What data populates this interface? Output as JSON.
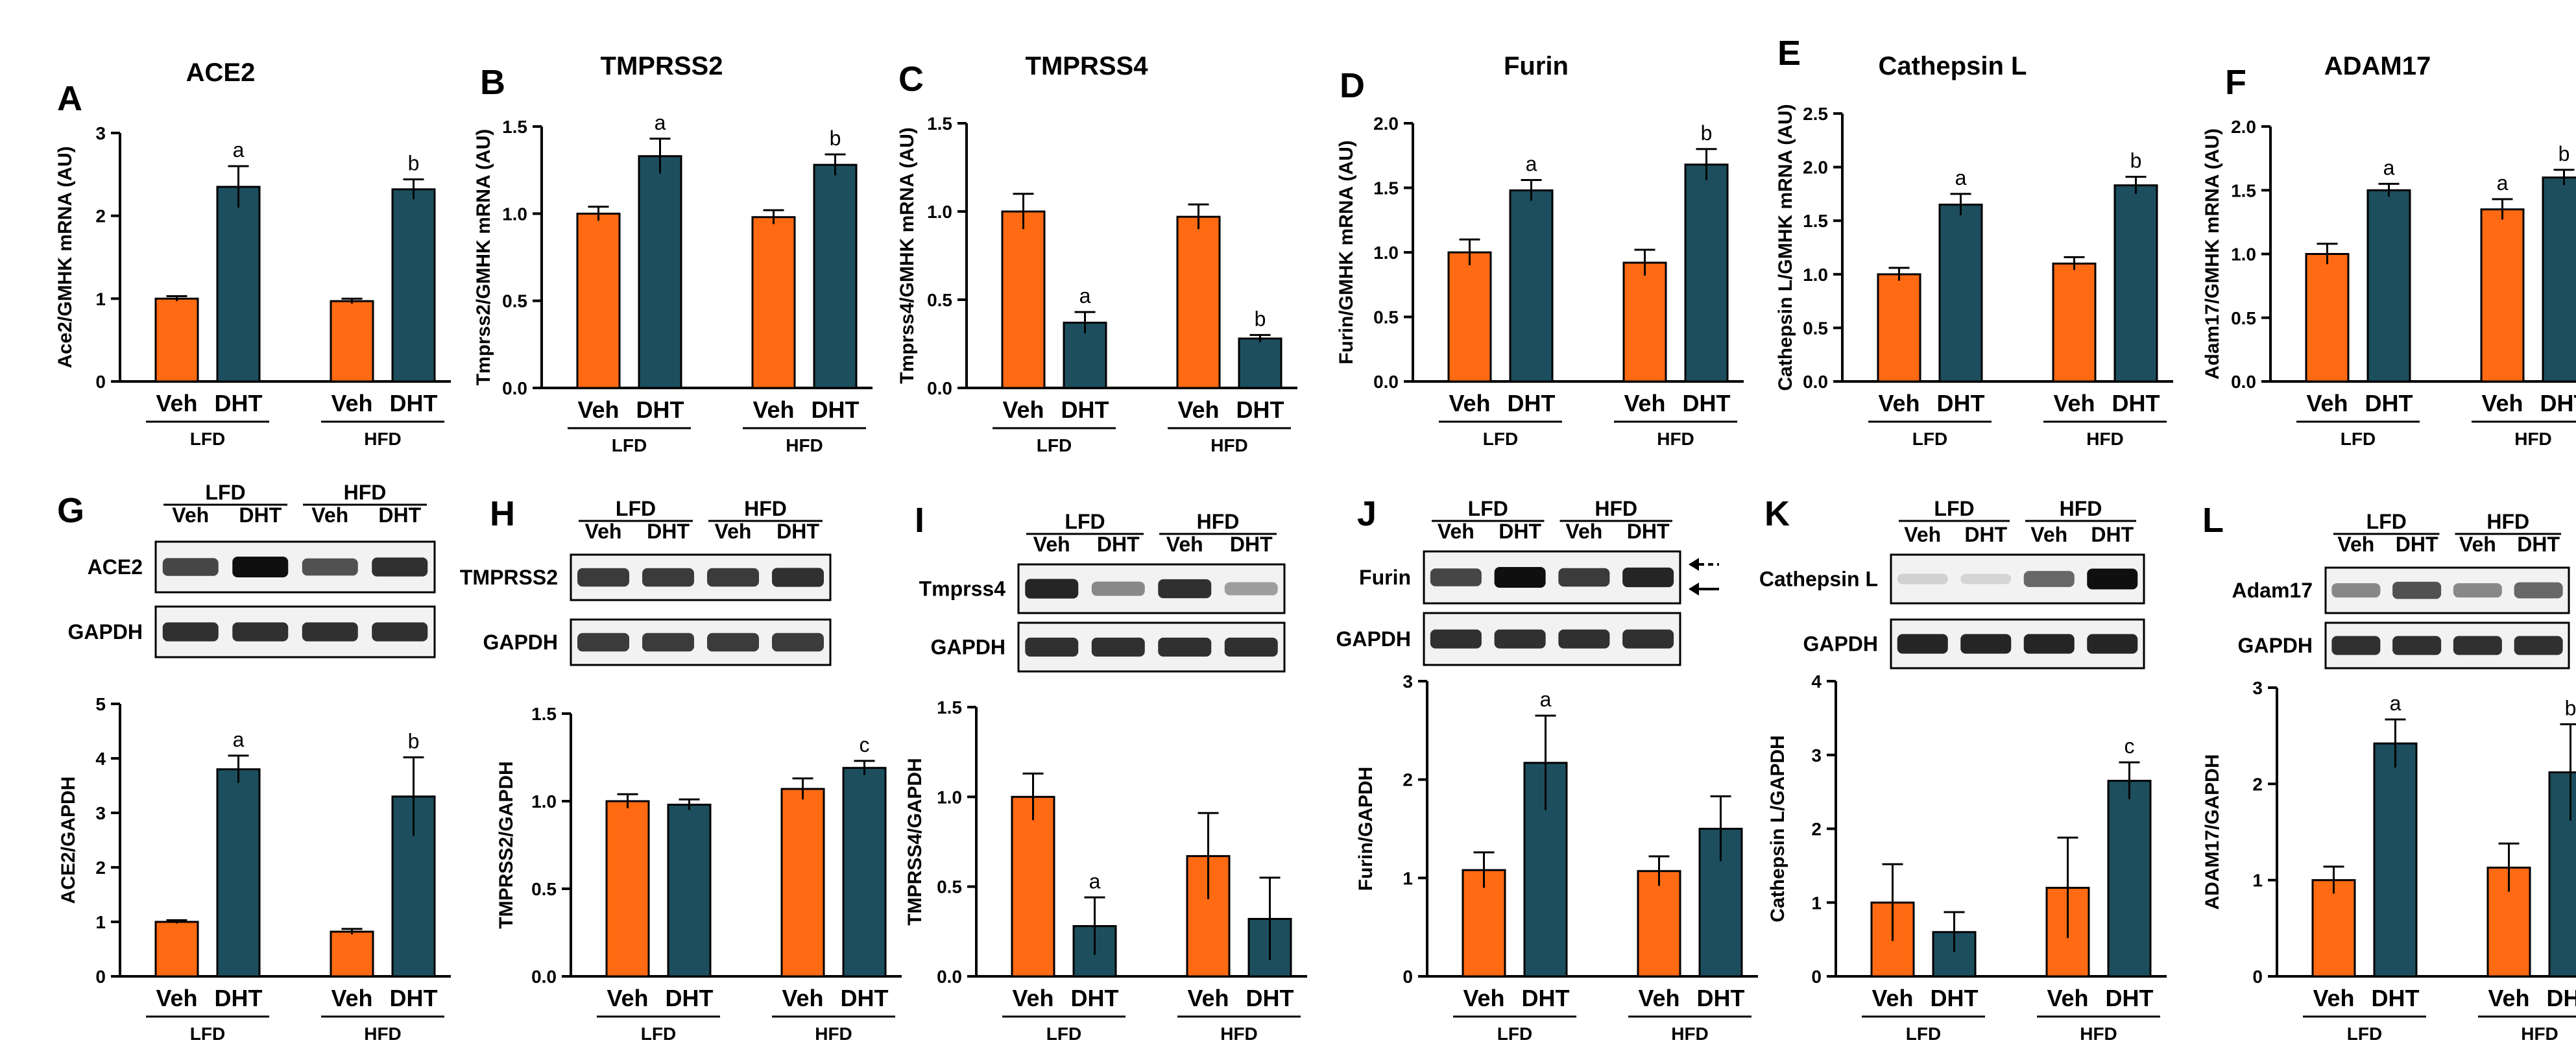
{
  "colors": {
    "veh": "#ff6a13",
    "dht": "#1c4e5e",
    "axis": "#000000"
  },
  "chart_data": [
    {
      "id": "A",
      "letter": "A",
      "type": "bar",
      "title": "ACE2",
      "ylabel": "Ace2/GMHK mRNA (AU)",
      "ylim": [
        0,
        3
      ],
      "yticks": [
        "0",
        "1",
        "2",
        "3"
      ],
      "groups": [
        "LFD",
        "HFD"
      ],
      "categories": [
        "Veh",
        "DHT",
        "Veh",
        "DHT"
      ],
      "values": [
        1.0,
        2.35,
        0.97,
        2.32
      ],
      "errors": [
        0.03,
        0.25,
        0.03,
        0.12
      ],
      "sig": [
        "",
        "a",
        "",
        "b"
      ]
    },
    {
      "id": "B",
      "letter": "B",
      "type": "bar",
      "title": "TMPRSS2",
      "ylabel": "Tmprss2/GMHK mRNA (AU)",
      "ylim": [
        0,
        1.5
      ],
      "yticks": [
        "0.0",
        "0.5",
        "1.0",
        "1.5"
      ],
      "groups": [
        "LFD",
        "HFD"
      ],
      "categories": [
        "Veh",
        "DHT",
        "Veh",
        "DHT"
      ],
      "values": [
        1.0,
        1.33,
        0.98,
        1.28
      ],
      "errors": [
        0.04,
        0.1,
        0.04,
        0.06
      ],
      "sig": [
        "",
        "a",
        "",
        "b"
      ]
    },
    {
      "id": "C",
      "letter": "C",
      "type": "bar",
      "title": "TMPRSS4",
      "ylabel": "Tmprss4/GMHK mRNA (AU)",
      "ylim": [
        0,
        1.5
      ],
      "yticks": [
        "0.0",
        "0.5",
        "1.0",
        "1.5"
      ],
      "groups": [
        "LFD",
        "HFD"
      ],
      "categories": [
        "Veh",
        "DHT",
        "Veh",
        "DHT"
      ],
      "values": [
        1.0,
        0.37,
        0.97,
        0.28
      ],
      "errors": [
        0.1,
        0.06,
        0.07,
        0.02
      ],
      "sig": [
        "",
        "a",
        "",
        "b"
      ]
    },
    {
      "id": "D",
      "letter": "D",
      "type": "bar",
      "title": "Furin",
      "ylabel": "Furin/GMHK mRNA (AU)",
      "ylim": [
        0,
        2.0
      ],
      "yticks": [
        "0.0",
        "0.5",
        "1.0",
        "1.5",
        "2.0"
      ],
      "groups": [
        "LFD",
        "HFD"
      ],
      "categories": [
        "Veh",
        "DHT",
        "Veh",
        "DHT"
      ],
      "values": [
        1.0,
        1.48,
        0.92,
        1.68
      ],
      "errors": [
        0.1,
        0.08,
        0.1,
        0.12
      ],
      "sig": [
        "",
        "a",
        "",
        "b"
      ]
    },
    {
      "id": "E",
      "letter": "E",
      "type": "bar",
      "title": "Cathepsin L",
      "ylabel": "Cathepsin L/GMHK mRNA (AU)",
      "ylim": [
        0,
        2.5
      ],
      "yticks": [
        "0.0",
        "0.5",
        "1.0",
        "1.5",
        "2.0",
        "2.5"
      ],
      "groups": [
        "LFD",
        "HFD"
      ],
      "categories": [
        "Veh",
        "DHT",
        "Veh",
        "DHT"
      ],
      "values": [
        1.0,
        1.65,
        1.1,
        1.83
      ],
      "errors": [
        0.06,
        0.1,
        0.06,
        0.08
      ],
      "sig": [
        "",
        "a",
        "",
        "b"
      ]
    },
    {
      "id": "F",
      "letter": "F",
      "type": "bar",
      "title": "ADAM17",
      "ylabel": "Adam17/GMHK mRNA (AU)",
      "ylim": [
        0,
        2.0
      ],
      "yticks": [
        "0.0",
        "0.5",
        "1.0",
        "1.5",
        "2.0"
      ],
      "groups": [
        "LFD",
        "HFD"
      ],
      "categories": [
        "Veh",
        "DHT",
        "Veh",
        "DHT"
      ],
      "values": [
        1.0,
        1.5,
        1.35,
        1.6
      ],
      "errors": [
        0.08,
        0.05,
        0.08,
        0.06
      ],
      "sig": [
        "",
        "a",
        "a",
        "b"
      ]
    },
    {
      "id": "G",
      "letter": "G",
      "type": "bar",
      "title": "",
      "ylabel": "ACE2/GAPDH",
      "ylim": [
        0,
        5
      ],
      "yticks": [
        "0",
        "1",
        "2",
        "3",
        "4",
        "5"
      ],
      "groups": [
        "LFD",
        "HFD"
      ],
      "categories": [
        "Veh",
        "DHT",
        "Veh",
        "DHT"
      ],
      "values": [
        1.0,
        3.8,
        0.82,
        3.3
      ],
      "errors": [
        0.03,
        0.25,
        0.05,
        0.72
      ],
      "sig": [
        "",
        "a",
        "",
        "b"
      ]
    },
    {
      "id": "H",
      "letter": "H",
      "type": "bar",
      "title": "",
      "ylabel": "TMPRSS2/GAPDH",
      "ylim": [
        0,
        1.5
      ],
      "yticks": [
        "0.0",
        "0.5",
        "1.0",
        "1.5"
      ],
      "groups": [
        "LFD",
        "HFD"
      ],
      "categories": [
        "Veh",
        "DHT",
        "Veh",
        "DHT"
      ],
      "values": [
        1.0,
        0.98,
        1.07,
        1.19
      ],
      "errors": [
        0.04,
        0.03,
        0.06,
        0.04
      ],
      "sig": [
        "",
        "",
        "",
        "c"
      ]
    },
    {
      "id": "I",
      "letter": "I",
      "type": "bar",
      "title": "",
      "ylabel": "TMPRSS4/GAPDH",
      "ylim": [
        0,
        1.5
      ],
      "yticks": [
        "0.0",
        "0.5",
        "1.0",
        "1.5"
      ],
      "groups": [
        "LFD",
        "HFD"
      ],
      "categories": [
        "Veh",
        "DHT",
        "Veh",
        "DHT"
      ],
      "values": [
        1.0,
        0.28,
        0.67,
        0.32
      ],
      "errors": [
        0.13,
        0.16,
        0.24,
        0.23
      ],
      "sig": [
        "",
        "a",
        "",
        ""
      ]
    },
    {
      "id": "J",
      "letter": "J",
      "type": "bar",
      "title": "",
      "ylabel": "Furin/GAPDH",
      "ylim": [
        0,
        3
      ],
      "yticks": [
        "0",
        "1",
        "2",
        "3"
      ],
      "groups": [
        "LFD",
        "HFD"
      ],
      "categories": [
        "Veh",
        "DHT",
        "Veh",
        "DHT"
      ],
      "values": [
        1.08,
        2.17,
        1.07,
        1.5
      ],
      "errors": [
        0.18,
        0.48,
        0.15,
        0.33
      ],
      "sig": [
        "",
        "a",
        "",
        ""
      ]
    },
    {
      "id": "K",
      "letter": "K",
      "type": "bar",
      "title": "",
      "ylabel": "Cathepsin L/GAPDH",
      "ylim": [
        0,
        4
      ],
      "yticks": [
        "0",
        "1",
        "2",
        "3",
        "4"
      ],
      "groups": [
        "LFD",
        "HFD"
      ],
      "categories": [
        "Veh",
        "DHT",
        "Veh",
        "DHT"
      ],
      "values": [
        1.0,
        0.6,
        1.2,
        2.65
      ],
      "errors": [
        0.52,
        0.27,
        0.68,
        0.25
      ],
      "sig": [
        "",
        "",
        "",
        "c"
      ]
    },
    {
      "id": "L",
      "letter": "L",
      "type": "bar",
      "title": "",
      "ylabel": "ADAM17/GAPDH",
      "ylim": [
        0,
        3
      ],
      "yticks": [
        "0",
        "1",
        "2",
        "3"
      ],
      "groups": [
        "LFD",
        "HFD"
      ],
      "categories": [
        "Veh",
        "DHT",
        "Veh",
        "DHT"
      ],
      "values": [
        1.0,
        2.42,
        1.13,
        2.12
      ],
      "errors": [
        0.14,
        0.25,
        0.25,
        0.5
      ],
      "sig": [
        "",
        "a",
        "",
        "b"
      ]
    }
  ],
  "blots": [
    {
      "id": "G",
      "header_groups": [
        "LFD",
        "HFD"
      ],
      "lane_labels": [
        "Veh",
        "DHT",
        "Veh",
        "DHT"
      ],
      "rows": [
        {
          "label": "ACE2",
          "intensity": [
            0.75,
            1.0,
            0.7,
            0.85
          ]
        },
        {
          "label": "GAPDH",
          "intensity": [
            0.85,
            0.85,
            0.85,
            0.85
          ]
        }
      ]
    },
    {
      "id": "H",
      "header_groups": [
        "LFD",
        "HFD"
      ],
      "lane_labels": [
        "Veh",
        "DHT",
        "Veh",
        "DHT"
      ],
      "rows": [
        {
          "label": "TMPRSS2",
          "intensity": [
            0.8,
            0.8,
            0.8,
            0.85
          ]
        },
        {
          "label": "GAPDH",
          "intensity": [
            0.8,
            0.8,
            0.8,
            0.8
          ]
        }
      ]
    },
    {
      "id": "I",
      "header_groups": [
        "LFD",
        "HFD"
      ],
      "lane_labels": [
        "Veh",
        "DHT",
        "Veh",
        "DHT"
      ],
      "rows": [
        {
          "label": "Tmprss4",
          "intensity": [
            0.9,
            0.45,
            0.85,
            0.35
          ]
        },
        {
          "label": "GAPDH",
          "intensity": [
            0.85,
            0.85,
            0.85,
            0.85
          ]
        }
      ]
    },
    {
      "id": "J",
      "header_groups": [
        "LFD",
        "HFD"
      ],
      "lane_labels": [
        "Veh",
        "DHT",
        "Veh",
        "DHT"
      ],
      "rows": [
        {
          "label": "Furin",
          "intensity": [
            0.75,
            1.0,
            0.8,
            0.9
          ]
        },
        {
          "label": "GAPDH",
          "intensity": [
            0.85,
            0.85,
            0.85,
            0.85
          ]
        }
      ]
    },
    {
      "id": "K",
      "header_groups": [
        "LFD",
        "HFD"
      ],
      "lane_labels": [
        "Veh",
        "DHT",
        "Veh",
        "DHT"
      ],
      "rows": [
        {
          "label": "Cathepsin L",
          "intensity": [
            0.12,
            0.1,
            0.6,
            1.0
          ]
        },
        {
          "label": "GAPDH",
          "intensity": [
            0.9,
            0.9,
            0.9,
            0.9
          ]
        }
      ]
    },
    {
      "id": "L",
      "header_groups": [
        "LFD",
        "HFD"
      ],
      "lane_labels": [
        "Veh",
        "DHT",
        "Veh",
        "DHT"
      ],
      "rows": [
        {
          "label": "Adam17",
          "intensity": [
            0.45,
            0.7,
            0.45,
            0.6
          ]
        },
        {
          "label": "GAPDH",
          "intensity": [
            0.85,
            0.85,
            0.85,
            0.85
          ]
        }
      ]
    }
  ]
}
